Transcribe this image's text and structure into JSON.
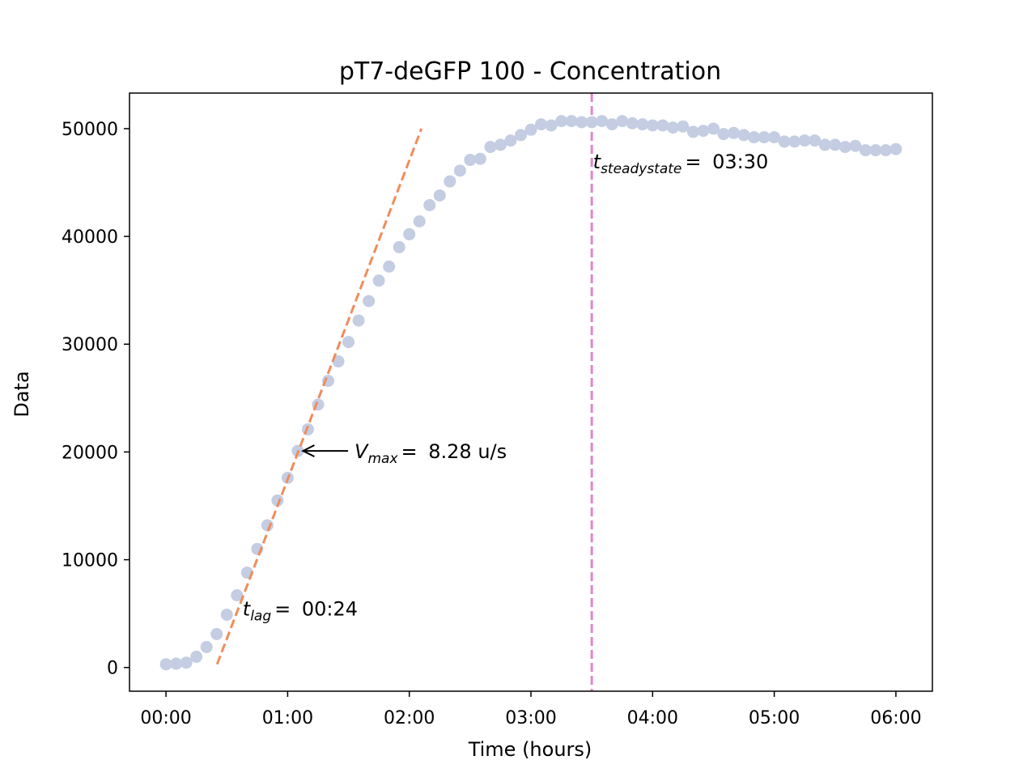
{
  "chart_data": {
    "type": "scatter",
    "title": "pT7-deGFP 100 - Concentration",
    "xlabel": "Time (hours)",
    "ylabel": "Data",
    "xlim": [
      -0.3,
      6.3
    ],
    "ylim": [
      -2200,
      53300
    ],
    "x_ticks": [
      0,
      1,
      2,
      3,
      4,
      5,
      6
    ],
    "x_tick_labels": [
      "00:00",
      "01:00",
      "02:00",
      "03:00",
      "04:00",
      "05:00",
      "06:00"
    ],
    "y_ticks": [
      0,
      10000,
      20000,
      30000,
      40000,
      50000
    ],
    "y_tick_labels": [
      "0",
      "10000",
      "20000",
      "30000",
      "40000",
      "50000"
    ],
    "colors": {
      "points": "#c4cde2",
      "fit_line": "#f08c5c",
      "steady_line": "#e286c8"
    },
    "series": [
      {
        "x": [
          0,
          0.0833,
          0.1667,
          0.25,
          0.3333,
          0.4167,
          0.5,
          0.5833,
          0.6667,
          0.75,
          0.8333,
          0.9167,
          1.0,
          1.0833,
          1.1667,
          1.25,
          1.3333,
          1.4167,
          1.5,
          1.5833,
          1.6667,
          1.75,
          1.8333,
          1.9167,
          2.0,
          2.0833,
          2.1667,
          2.25,
          2.3333,
          2.4167,
          2.5,
          2.5833,
          2.6667,
          2.75,
          2.8333,
          2.9167,
          3.0,
          3.0833,
          3.1667,
          3.25,
          3.3333,
          3.4167,
          3.5,
          3.5833,
          3.6667,
          3.75,
          3.8333,
          3.9167,
          4.0,
          4.0833,
          4.1667,
          4.25,
          4.3333,
          4.4167,
          4.5,
          4.5833,
          4.6667,
          4.75,
          4.8333,
          4.9167,
          5.0,
          5.0833,
          5.1667,
          5.25,
          5.3333,
          5.4167,
          5.5,
          5.5833,
          5.6667,
          5.75,
          5.8333,
          5.9167,
          6.0
        ],
        "y": [
          300,
          350,
          450,
          1000,
          1900,
          3100,
          4900,
          6700,
          8800,
          11000,
          13200,
          15500,
          17600,
          20100,
          22100,
          24400,
          26600,
          28400,
          30200,
          32200,
          34000,
          35900,
          37200,
          39000,
          40200,
          41400,
          42900,
          43800,
          45100,
          46100,
          47100,
          47200,
          48300,
          48500,
          48900,
          49400,
          49900,
          50400,
          50300,
          50700,
          50700,
          50600,
          50600,
          50700,
          50400,
          50700,
          50500,
          50400,
          50300,
          50300,
          50100,
          50200,
          49700,
          49800,
          50000,
          49500,
          49600,
          49400,
          49200,
          49200,
          49200,
          48800,
          48800,
          48900,
          48900,
          48500,
          48500,
          48300,
          48400,
          48000,
          48000,
          48000,
          48100
        ]
      }
    ],
    "fit_line": {
      "x": [
        0.42,
        2.1
      ],
      "y": [
        300,
        50000
      ],
      "style": "dashed"
    },
    "steady_line": {
      "x": 3.5,
      "style": "dashed"
    },
    "annotations": {
      "vmax": {
        "var": "V",
        "sub": "max",
        "eq": "= ",
        "value": "8.28 u/s",
        "point": [
          1.1,
          20100
        ],
        "text_pos": [
          1.55,
          20100
        ]
      },
      "tlag": {
        "var": "t",
        "sub": "lag",
        "eq": "= ",
        "value": "00:24",
        "text_pos": [
          0.63,
          5500
        ]
      },
      "tsteady": {
        "var": "t",
        "sub": "steadystate",
        "eq": "= ",
        "value": "03:30",
        "text_pos": [
          3.51,
          47000
        ]
      }
    }
  }
}
